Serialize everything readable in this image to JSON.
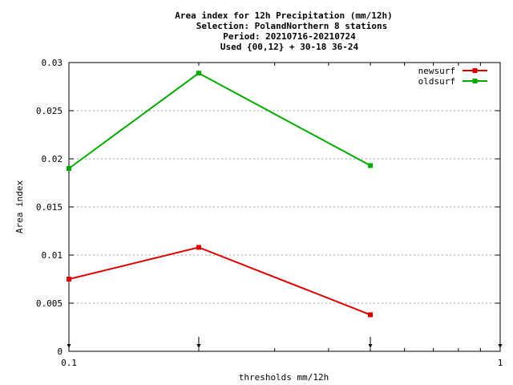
{
  "chart_data": {
    "type": "line",
    "title_lines": [
      "Area index  for 12h Precipitation (mm/12h)",
      "Selection: PolandNorthern      8 stations",
      "Period: 20210716-20210724",
      "Used {00,12} + 30-18 36-24"
    ],
    "xlabel": "thresholds mm/12h",
    "ylabel": "Area index",
    "x_scale": "log",
    "xlim": [
      0.1,
      1
    ],
    "ylim": [
      0,
      0.03
    ],
    "x_tick_labels": [
      {
        "value": 0.1,
        "label": "0.1"
      },
      {
        "value": 1,
        "label": "1"
      }
    ],
    "y_ticks": [
      {
        "value": 0,
        "label": "0"
      },
      {
        "value": 0.005,
        "label": "0.005"
      },
      {
        "value": 0.01,
        "label": "0.01"
      },
      {
        "value": 0.015,
        "label": "0.015"
      },
      {
        "value": 0.02,
        "label": "0.02"
      },
      {
        "value": 0.025,
        "label": "0.025"
      },
      {
        "value": 0.03,
        "label": "0.03"
      }
    ],
    "grid": "horizontal dashed",
    "legend_position": "top-right",
    "threshold_markers": [
      0.1,
      0.2,
      0.5,
      1
    ],
    "series": [
      {
        "name": "newsurf",
        "color": "#dd0000",
        "x": [
          0.1,
          0.2,
          0.5
        ],
        "y": [
          0.0075,
          0.0108,
          0.0038
        ]
      },
      {
        "name": "oldsurf",
        "color": "#00aa00",
        "x": [
          0.1,
          0.2,
          0.5
        ],
        "y": [
          0.019,
          0.0289,
          0.0193
        ]
      }
    ]
  }
}
